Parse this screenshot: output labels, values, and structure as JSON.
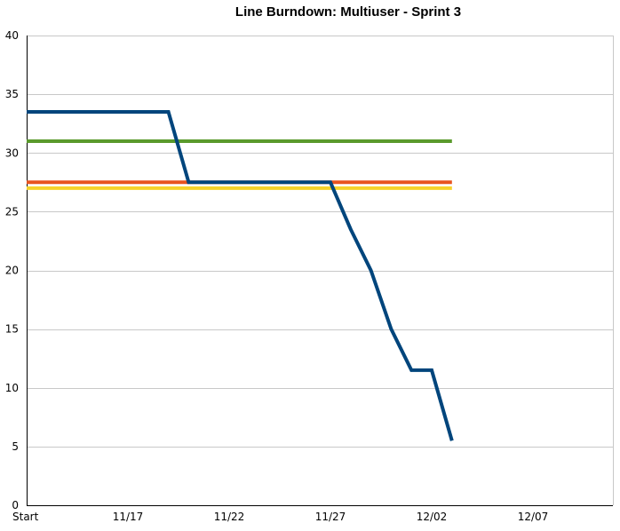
{
  "chart_data": {
    "type": "line",
    "title": "Line Burndown: Multiuser - Sprint 3",
    "xlabel": "",
    "ylabel": "",
    "x_ticks": [
      "Start",
      "11/17",
      "11/22",
      "11/27",
      "12/02",
      "12/07"
    ],
    "xlim": [
      0,
      29
    ],
    "ylim": [
      0,
      40
    ],
    "y_ticks": [
      0,
      5,
      10,
      15,
      20,
      25,
      30,
      35,
      40
    ],
    "grid": true,
    "legend": "none",
    "series": [
      {
        "color": "#00457c",
        "points": [
          [
            0,
            33.5
          ],
          [
            7,
            33.5
          ],
          [
            8,
            27.5
          ],
          [
            15,
            27.5
          ],
          [
            16,
            23.5
          ],
          [
            17,
            20
          ],
          [
            18,
            15
          ],
          [
            19,
            11.5
          ],
          [
            20,
            11.5
          ],
          [
            21,
            5.5
          ]
        ]
      },
      {
        "color": "#5a9a2c",
        "points": [
          [
            0,
            31
          ],
          [
            21,
            31
          ]
        ]
      },
      {
        "color": "#e8531f",
        "points": [
          [
            0,
            27.5
          ],
          [
            21,
            27.5
          ]
        ]
      },
      {
        "color": "#f6d22a",
        "points": [
          [
            0,
            27
          ],
          [
            21,
            27
          ]
        ]
      }
    ]
  }
}
